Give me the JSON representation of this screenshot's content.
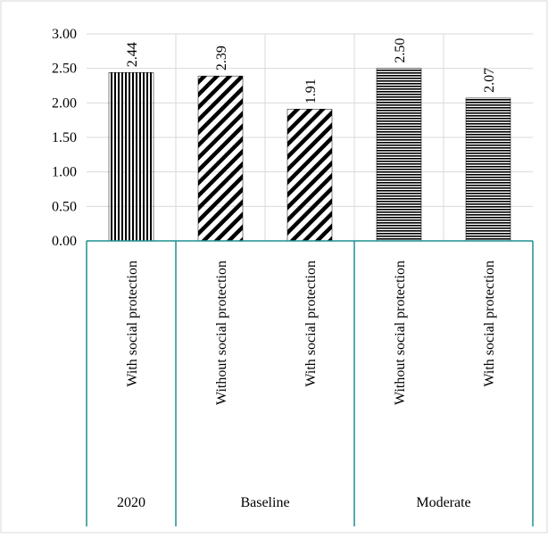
{
  "chart_data": {
    "type": "bar",
    "title": "",
    "xlabel": "",
    "ylabel": "",
    "ylim": [
      0,
      3
    ],
    "yticks": [
      "0.00",
      "0.50",
      "1.00",
      "1.50",
      "2.00",
      "2.50",
      "3.00"
    ],
    "grid": true,
    "legend": "none",
    "groups": [
      {
        "label": "2020",
        "bars": [
          {
            "label": "With social protection",
            "value": 2.44,
            "value_label": "2.44",
            "pattern": "vertical-stripes"
          }
        ]
      },
      {
        "label": "Baseline",
        "bars": [
          {
            "label": "Without social protection",
            "value": 2.39,
            "value_label": "2.39",
            "pattern": "diagonal-stripes"
          },
          {
            "label": "With social protection",
            "value": 1.91,
            "value_label": "1.91",
            "pattern": "diagonal-stripes"
          }
        ]
      },
      {
        "label": "Moderate",
        "bars": [
          {
            "label": "Without social protection",
            "value": 2.5,
            "value_label": "2.50",
            "pattern": "horizontal-stripes"
          },
          {
            "label": "With social protection",
            "value": 2.07,
            "value_label": "2.07",
            "pattern": "horizontal-stripes"
          }
        ]
      }
    ],
    "colors": {
      "bars": "#000000",
      "grid": "#d9d9d9",
      "axis_table": "#1f8f8f",
      "frame": "#d9d9d9"
    }
  }
}
